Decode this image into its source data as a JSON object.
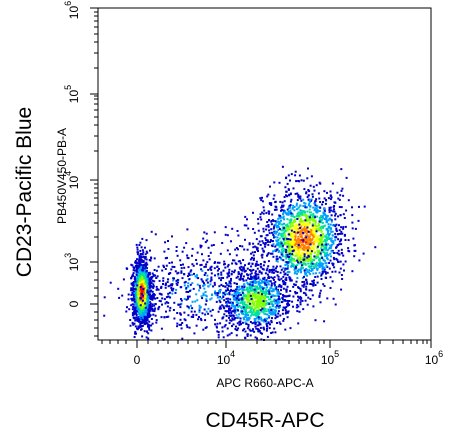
{
  "chart_data": {
    "type": "scatter",
    "subtype": "flow-cytometry-density-dot-plot",
    "title": "",
    "xlabel": "CD45R-APC",
    "ylabel": "CD23-Pacific Blue",
    "x_channel_label": "APC R660-APC-A",
    "y_channel_label": "PB450V450-PB-A",
    "x_scale": "biexponential",
    "y_scale": "biexponential",
    "x_tick_labels": [
      {
        "label": "0",
        "value": 0
      },
      {
        "label": "10",
        "sup": "4",
        "value": 10000
      },
      {
        "label": "10",
        "sup": "5",
        "value": 100000
      },
      {
        "label": "10",
        "sup": "6",
        "value": 1000000
      }
    ],
    "y_tick_labels": [
      {
        "label": "0",
        "value": 0
      },
      {
        "label": "10",
        "sup": "3",
        "value": 1000
      },
      {
        "label": "10",
        "sup": "4",
        "value": 10000
      },
      {
        "label": "10",
        "sup": "5",
        "value": 100000
      },
      {
        "label": "10",
        "sup": "6",
        "value": 1000000
      }
    ],
    "xlim": [
      -2000,
      1000000
    ],
    "ylim": [
      -300,
      1000000
    ],
    "grid": false,
    "legend": "none",
    "color_scale": [
      "#0000c8",
      "#00a0ff",
      "#00e0a0",
      "#80ff00",
      "#ffff00",
      "#ff8000",
      "#ff0000"
    ],
    "populations": [
      {
        "description": "CD45R-negative / CD23-low",
        "x_center": 0,
        "y_center": 20,
        "density": "high"
      },
      {
        "description": "CD45R-intermediate / CD23-low",
        "x_center": 20000,
        "y_center": 10,
        "density": "medium"
      },
      {
        "description": "CD45R-high / CD23-positive",
        "x_center": 60000,
        "y_center": 2000,
        "density": "high"
      }
    ]
  }
}
